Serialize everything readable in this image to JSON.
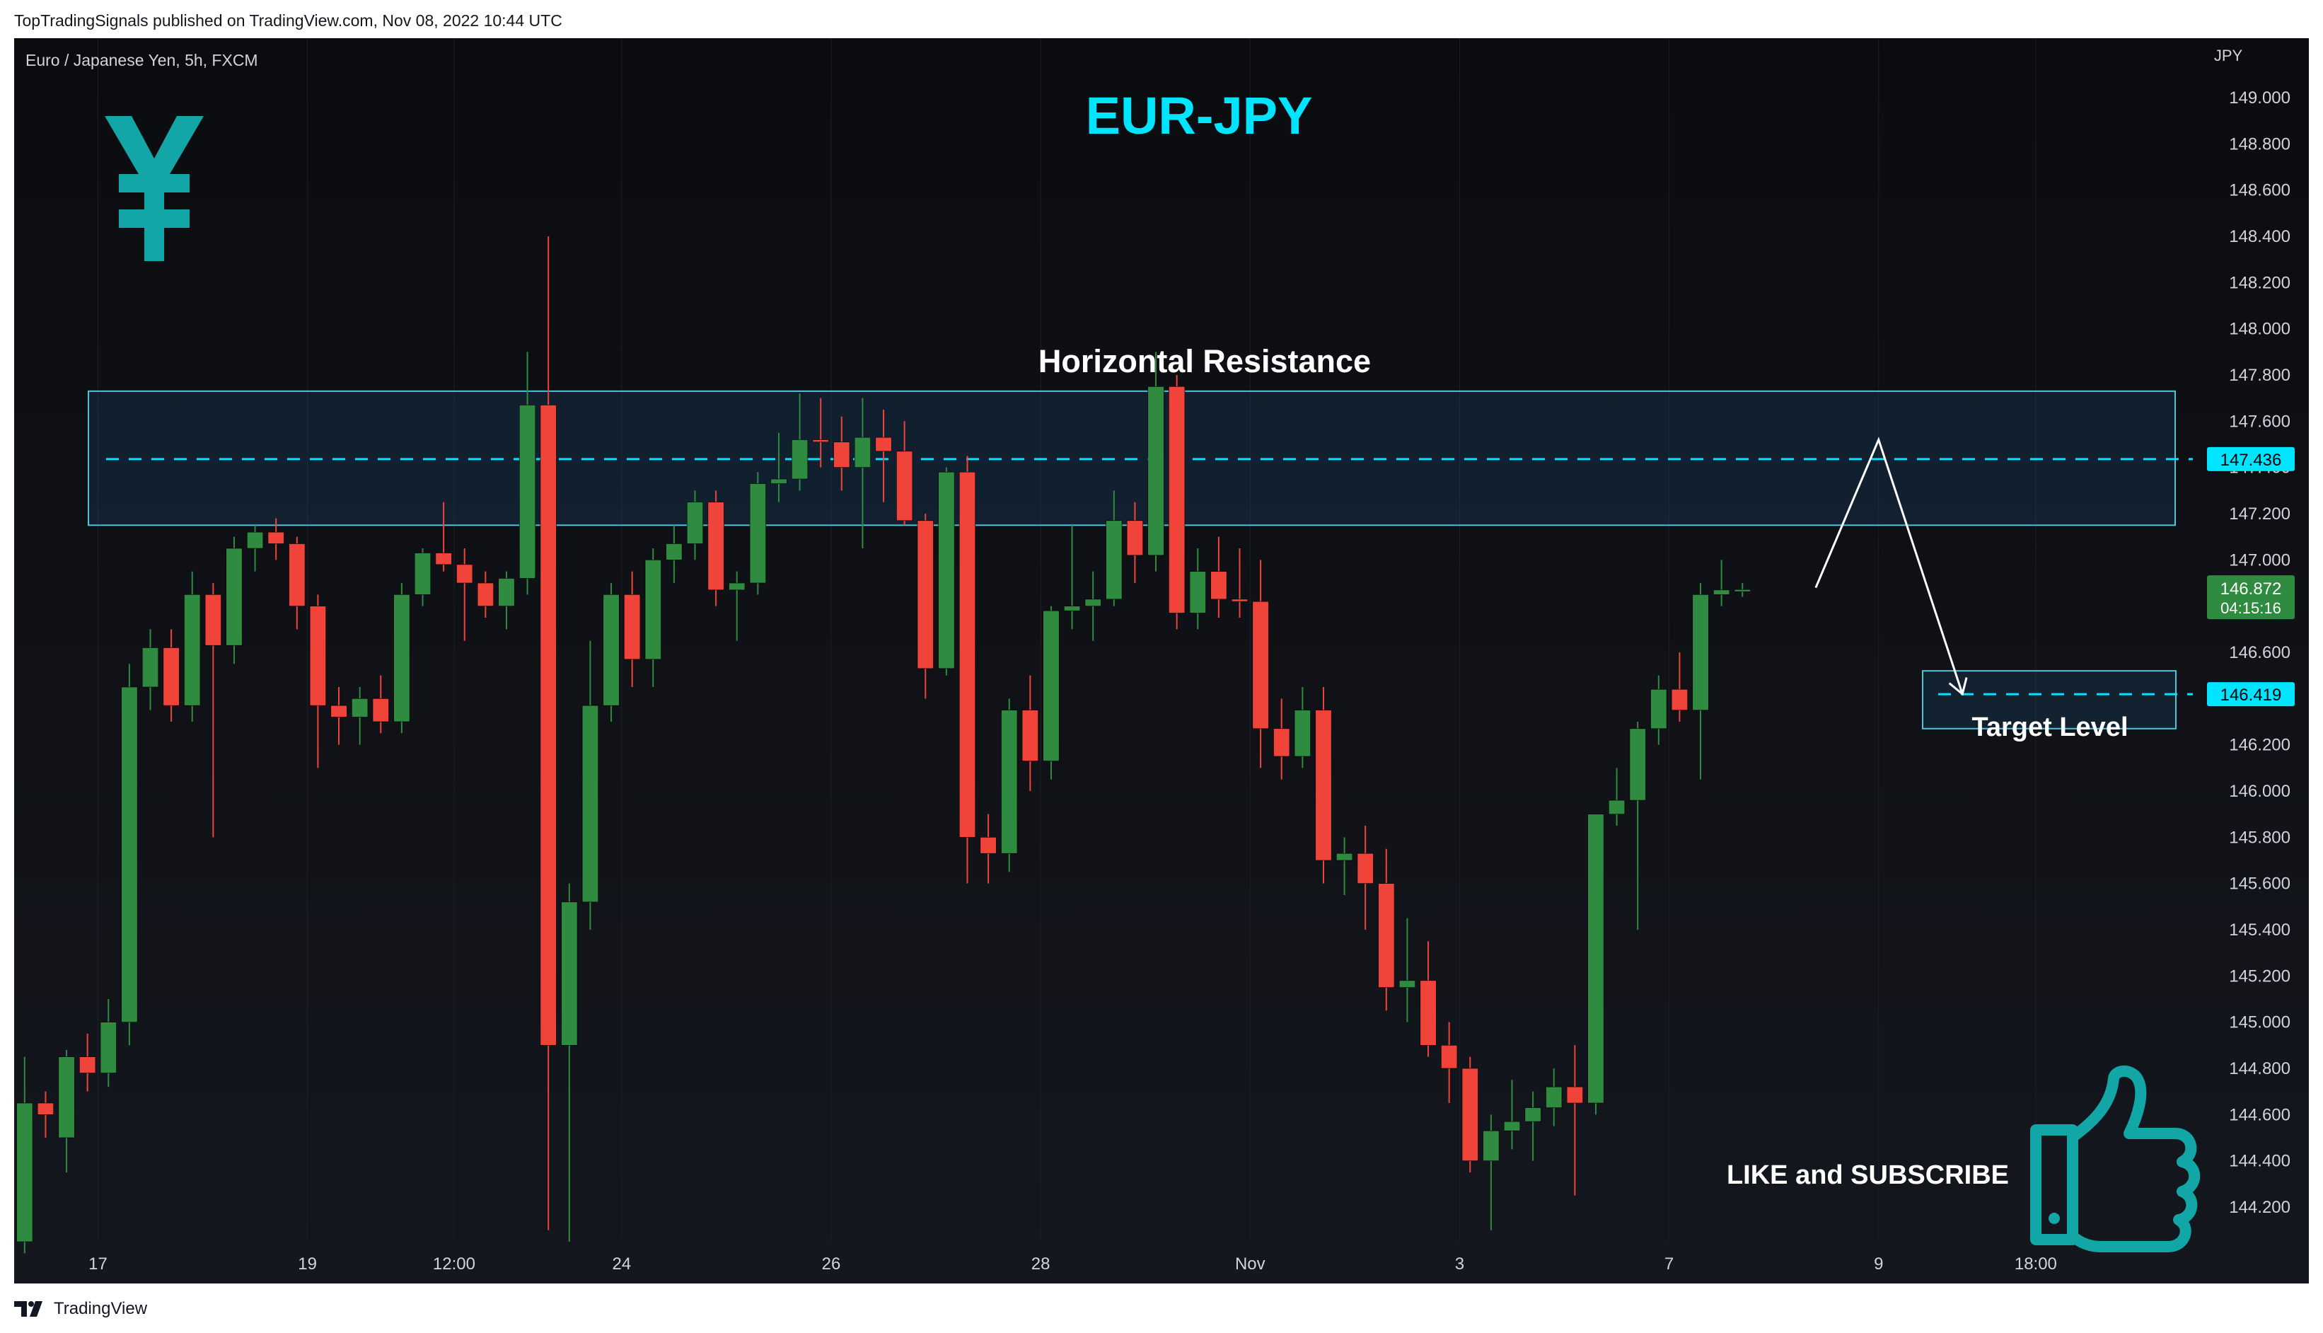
{
  "publisher_line": "TopTradingSignals published on TradingView.com, Nov 08, 2022 10:44 UTC",
  "symbol_info": "Euro / Japanese Yen, 5h, FXCM",
  "footer_brand": "TradingView",
  "colors": {
    "up": "#2e8b3f",
    "down": "#f0433a",
    "accent": "#00e5ff",
    "zone_border": "#4fc3d9",
    "price_badge_green": "#2e8b3f",
    "yen_icon": "#13a6a6",
    "thumb_icon": "#13a6a6"
  },
  "icons": [
    "yen-icon",
    "thumbs-up-icon",
    "tradingview-logo-icon"
  ],
  "chart_data": {
    "type": "candlestick",
    "title": "EUR-JPY",
    "currency_label": "JPY",
    "ylim": [
      144.0,
      149.1
    ],
    "y_ticks": [
      149.0,
      148.8,
      148.6,
      148.4,
      148.2,
      148.0,
      147.8,
      147.6,
      147.4,
      147.2,
      147.0,
      146.8,
      146.6,
      146.4,
      146.2,
      146.0,
      145.8,
      145.6,
      145.4,
      145.2,
      145.0,
      144.8,
      144.6,
      144.4,
      144.2
    ],
    "y_tick_labels": [
      "149.000",
      "148.800",
      "148.600",
      "148.400",
      "148.200",
      "148.000",
      "147.800",
      "147.600",
      "147.400",
      "147.200",
      "147.000",
      "146.800",
      "146.600",
      "146.400",
      "146.200",
      "146.000",
      "145.800",
      "145.600",
      "145.400",
      "145.200",
      "145.000",
      "144.800",
      "144.600",
      "144.400",
      "144.200"
    ],
    "x_labels": [
      {
        "label": "17",
        "bar": 3.5
      },
      {
        "label": "19",
        "bar": 13.5
      },
      {
        "label": "12:00",
        "bar": 20.5
      },
      {
        "label": "24",
        "bar": 28.5
      },
      {
        "label": "26",
        "bar": 38.5
      },
      {
        "label": "28",
        "bar": 48.5
      },
      {
        "label": "Nov",
        "bar": 58.5
      },
      {
        "label": "3",
        "bar": 68.5
      },
      {
        "label": "7",
        "bar": 78.5
      },
      {
        "label": "9",
        "bar": 88.5
      },
      {
        "label": "18:00",
        "bar": 96
      }
    ],
    "bar_count_visible": 104,
    "candles": [
      {
        "o": 144.05,
        "h": 144.85,
        "l": 144.0,
        "c": 144.65
      },
      {
        "o": 144.65,
        "h": 144.7,
        "l": 144.5,
        "c": 144.6
      },
      {
        "o": 144.5,
        "h": 144.88,
        "l": 144.35,
        "c": 144.85
      },
      {
        "o": 144.85,
        "h": 144.95,
        "l": 144.7,
        "c": 144.78
      },
      {
        "o": 144.78,
        "h": 145.1,
        "l": 144.72,
        "c": 145.0
      },
      {
        "o": 145.0,
        "h": 146.55,
        "l": 144.9,
        "c": 146.45
      },
      {
        "o": 146.45,
        "h": 146.7,
        "l": 146.35,
        "c": 146.62
      },
      {
        "o": 146.62,
        "h": 146.7,
        "l": 146.3,
        "c": 146.37
      },
      {
        "o": 146.37,
        "h": 146.95,
        "l": 146.3,
        "c": 146.85
      },
      {
        "o": 146.85,
        "h": 146.9,
        "l": 145.8,
        "c": 146.63
      },
      {
        "o": 146.63,
        "h": 147.1,
        "l": 146.55,
        "c": 147.05
      },
      {
        "o": 147.05,
        "h": 147.15,
        "l": 146.95,
        "c": 147.12
      },
      {
        "o": 147.12,
        "h": 147.18,
        "l": 147.0,
        "c": 147.07
      },
      {
        "o": 147.07,
        "h": 147.1,
        "l": 146.7,
        "c": 146.8
      },
      {
        "o": 146.8,
        "h": 146.85,
        "l": 146.1,
        "c": 146.37
      },
      {
        "o": 146.37,
        "h": 146.45,
        "l": 146.2,
        "c": 146.32
      },
      {
        "o": 146.32,
        "h": 146.45,
        "l": 146.2,
        "c": 146.4
      },
      {
        "o": 146.4,
        "h": 146.5,
        "l": 146.25,
        "c": 146.3
      },
      {
        "o": 146.3,
        "h": 146.9,
        "l": 146.25,
        "c": 146.85
      },
      {
        "o": 146.85,
        "h": 147.05,
        "l": 146.8,
        "c": 147.03
      },
      {
        "o": 147.03,
        "h": 147.25,
        "l": 146.95,
        "c": 146.98
      },
      {
        "o": 146.98,
        "h": 147.05,
        "l": 146.65,
        "c": 146.9
      },
      {
        "o": 146.9,
        "h": 146.95,
        "l": 146.75,
        "c": 146.8
      },
      {
        "o": 146.8,
        "h": 146.95,
        "l": 146.7,
        "c": 146.92
      },
      {
        "o": 146.92,
        "h": 147.9,
        "l": 146.85,
        "c": 147.67
      },
      {
        "o": 147.67,
        "h": 148.4,
        "l": 144.1,
        "c": 144.9
      },
      {
        "o": 144.9,
        "h": 145.6,
        "l": 144.05,
        "c": 145.52
      },
      {
        "o": 145.52,
        "h": 146.65,
        "l": 145.4,
        "c": 146.37
      },
      {
        "o": 146.37,
        "h": 146.9,
        "l": 146.3,
        "c": 146.85
      },
      {
        "o": 146.85,
        "h": 146.95,
        "l": 146.45,
        "c": 146.57
      },
      {
        "o": 146.57,
        "h": 147.05,
        "l": 146.45,
        "c": 147.0
      },
      {
        "o": 147.0,
        "h": 147.15,
        "l": 146.9,
        "c": 147.07
      },
      {
        "o": 147.07,
        "h": 147.3,
        "l": 147.0,
        "c": 147.25
      },
      {
        "o": 147.25,
        "h": 147.3,
        "l": 146.8,
        "c": 146.87
      },
      {
        "o": 146.87,
        "h": 146.95,
        "l": 146.65,
        "c": 146.9
      },
      {
        "o": 146.9,
        "h": 147.38,
        "l": 146.85,
        "c": 147.33
      },
      {
        "o": 147.33,
        "h": 147.55,
        "l": 147.25,
        "c": 147.35
      },
      {
        "o": 147.35,
        "h": 147.72,
        "l": 147.3,
        "c": 147.52
      },
      {
        "o": 147.52,
        "h": 147.7,
        "l": 147.4,
        "c": 147.51
      },
      {
        "o": 147.51,
        "h": 147.62,
        "l": 147.3,
        "c": 147.4
      },
      {
        "o": 147.4,
        "h": 147.7,
        "l": 147.05,
        "c": 147.53
      },
      {
        "o": 147.53,
        "h": 147.65,
        "l": 147.25,
        "c": 147.47
      },
      {
        "o": 147.47,
        "h": 147.6,
        "l": 147.15,
        "c": 147.17
      },
      {
        "o": 147.17,
        "h": 147.2,
        "l": 146.4,
        "c": 146.53
      },
      {
        "o": 146.53,
        "h": 147.4,
        "l": 146.5,
        "c": 147.38
      },
      {
        "o": 147.38,
        "h": 147.45,
        "l": 145.6,
        "c": 145.8
      },
      {
        "o": 145.8,
        "h": 145.9,
        "l": 145.6,
        "c": 145.73
      },
      {
        "o": 145.73,
        "h": 146.4,
        "l": 145.65,
        "c": 146.35
      },
      {
        "o": 146.35,
        "h": 146.5,
        "l": 146.0,
        "c": 146.13
      },
      {
        "o": 146.13,
        "h": 146.8,
        "l": 146.05,
        "c": 146.78
      },
      {
        "o": 146.78,
        "h": 147.15,
        "l": 146.7,
        "c": 146.8
      },
      {
        "o": 146.8,
        "h": 146.95,
        "l": 146.65,
        "c": 146.83
      },
      {
        "o": 146.83,
        "h": 147.3,
        "l": 146.8,
        "c": 147.17
      },
      {
        "o": 147.17,
        "h": 147.25,
        "l": 146.9,
        "c": 147.02
      },
      {
        "o": 147.02,
        "h": 147.9,
        "l": 146.95,
        "c": 147.75
      },
      {
        "o": 147.75,
        "h": 147.8,
        "l": 146.7,
        "c": 146.77
      },
      {
        "o": 146.77,
        "h": 147.05,
        "l": 146.7,
        "c": 146.95
      },
      {
        "o": 146.95,
        "h": 147.1,
        "l": 146.75,
        "c": 146.83
      },
      {
        "o": 146.83,
        "h": 147.05,
        "l": 146.75,
        "c": 146.82
      },
      {
        "o": 146.82,
        "h": 147.0,
        "l": 146.1,
        "c": 146.27
      },
      {
        "o": 146.27,
        "h": 146.4,
        "l": 146.05,
        "c": 146.15
      },
      {
        "o": 146.15,
        "h": 146.45,
        "l": 146.1,
        "c": 146.35
      },
      {
        "o": 146.35,
        "h": 146.45,
        "l": 145.6,
        "c": 145.7
      },
      {
        "o": 145.7,
        "h": 145.8,
        "l": 145.55,
        "c": 145.73
      },
      {
        "o": 145.73,
        "h": 145.85,
        "l": 145.4,
        "c": 145.6
      },
      {
        "o": 145.6,
        "h": 145.75,
        "l": 145.05,
        "c": 145.15
      },
      {
        "o": 145.15,
        "h": 145.45,
        "l": 145.0,
        "c": 145.18
      },
      {
        "o": 145.18,
        "h": 145.35,
        "l": 144.85,
        "c": 144.9
      },
      {
        "o": 144.9,
        "h": 145.0,
        "l": 144.65,
        "c": 144.8
      },
      {
        "o": 144.8,
        "h": 144.85,
        "l": 144.35,
        "c": 144.4
      },
      {
        "o": 144.4,
        "h": 144.6,
        "l": 144.1,
        "c": 144.53
      },
      {
        "o": 144.53,
        "h": 144.75,
        "l": 144.45,
        "c": 144.57
      },
      {
        "o": 144.57,
        "h": 144.7,
        "l": 144.4,
        "c": 144.63
      },
      {
        "o": 144.63,
        "h": 144.8,
        "l": 144.55,
        "c": 144.72
      },
      {
        "o": 144.72,
        "h": 144.9,
        "l": 144.25,
        "c": 144.65
      },
      {
        "o": 144.65,
        "h": 145.9,
        "l": 144.6,
        "c": 145.9
      },
      {
        "o": 145.9,
        "h": 146.1,
        "l": 145.85,
        "c": 145.96
      },
      {
        "o": 145.96,
        "h": 146.3,
        "l": 145.4,
        "c": 146.27
      },
      {
        "o": 146.27,
        "h": 146.5,
        "l": 146.2,
        "c": 146.44
      },
      {
        "o": 146.44,
        "h": 146.6,
        "l": 146.3,
        "c": 146.35
      },
      {
        "o": 146.35,
        "h": 146.9,
        "l": 146.05,
        "c": 146.85
      },
      {
        "o": 146.85,
        "h": 147.0,
        "l": 146.8,
        "c": 146.87
      },
      {
        "o": 146.87,
        "h": 146.9,
        "l": 146.84,
        "c": 146.872
      }
    ],
    "resistance_zone": {
      "low": 147.15,
      "high": 147.73,
      "level": 147.436,
      "label": "Horizontal Resistance"
    },
    "target_zone": {
      "low": 146.27,
      "high": 146.52,
      "level": 146.419,
      "label": "Target Level"
    },
    "projection_path": [
      {
        "bar": 85.5,
        "price": 146.88
      },
      {
        "bar": 88.5,
        "price": 147.52
      },
      {
        "bar": 92.5,
        "price": 146.42
      }
    ],
    "price_badges": [
      {
        "value": "147.436",
        "style": "accent"
      },
      {
        "value": "146.419",
        "style": "accent"
      },
      {
        "value": "146.872",
        "countdown": "04:15:16",
        "style": "green"
      }
    ],
    "annotations": {
      "like_subscribe": "LIKE and SUBSCRIBE"
    }
  }
}
